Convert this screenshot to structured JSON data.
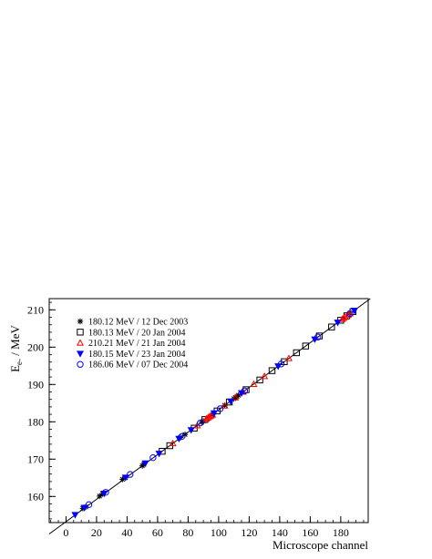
{
  "chart_data": {
    "type": "scatter",
    "xlabel": "Microscope channel",
    "ylabel": "E",
    "ylabel_subscript": "e-",
    "ylabel_unit": " / MeV",
    "xlim": [
      -11,
      198
    ],
    "ylim": [
      153,
      213
    ],
    "x_ticks": [
      0,
      20,
      40,
      60,
      80,
      100,
      120,
      140,
      160,
      180
    ],
    "y_ticks": [
      160,
      170,
      180,
      190,
      200,
      210
    ],
    "x_minor_step": 5,
    "y_minor_step": 2,
    "grid": false,
    "legend_position": "top-left",
    "fit_line": {
      "slope": 0.2997,
      "intercept": 153.24,
      "color": "#000000"
    },
    "series": [
      {
        "name": "180.12 MeV / 12 Dec 2003",
        "marker": "star",
        "color": "#000000",
        "points": [
          [
            11,
            156.8
          ],
          [
            13,
            157.2
          ],
          [
            22,
            160.1
          ],
          [
            24,
            160.7
          ],
          [
            37,
            164.6
          ],
          [
            39,
            165.0
          ],
          [
            50,
            168.2
          ],
          [
            51,
            168.6
          ],
          [
            75,
            175.8
          ],
          [
            78,
            176.6
          ],
          [
            89,
            179.9
          ],
          [
            90,
            180.2
          ],
          [
            96,
            181.9
          ],
          [
            104,
            184.4
          ],
          [
            110,
            186.2
          ],
          [
            111,
            186.5
          ],
          [
            112,
            186.8
          ],
          [
            113,
            187.1
          ]
        ]
      },
      {
        "name": "180.13 MeV / 20 Jan 2004",
        "marker": "square",
        "color": "#000000",
        "points": [
          [
            63,
            172.1
          ],
          [
            68,
            173.6
          ],
          [
            84,
            178.3
          ],
          [
            91,
            180.6
          ],
          [
            99,
            182.9
          ],
          [
            107,
            185.3
          ],
          [
            118,
            188.6
          ],
          [
            127,
            191.2
          ],
          [
            135,
            193.7
          ],
          [
            143,
            196.1
          ],
          [
            151,
            198.5
          ],
          [
            157,
            200.3
          ],
          [
            166,
            203.0
          ],
          [
            174,
            205.4
          ],
          [
            180,
            207.2
          ],
          [
            184,
            208.4
          ],
          [
            188,
            209.5
          ]
        ]
      },
      {
        "name": "210.21 MeV / 21 Jan 2004",
        "marker": "triangle-up",
        "color": "#ff0000",
        "points": [
          [
            70,
            174.2
          ],
          [
            86,
            179.0
          ],
          [
            92,
            180.8
          ],
          [
            93,
            181.1
          ],
          [
            94,
            181.4
          ],
          [
            95,
            181.6
          ],
          [
            96,
            181.9
          ],
          [
            104,
            184.3
          ],
          [
            111,
            186.5
          ],
          [
            116,
            188.0
          ],
          [
            123,
            190.1
          ],
          [
            130,
            192.2
          ],
          [
            146,
            197.0
          ],
          [
            181,
            207.5
          ],
          [
            182,
            207.8
          ],
          [
            183,
            208.1
          ],
          [
            185,
            208.7
          ],
          [
            186,
            209.0
          ]
        ]
      },
      {
        "name": "180.15 MeV / 23 Jan 2004",
        "marker": "triangle-down",
        "color": "#0000ff",
        "points": [
          [
            6,
            155.1
          ],
          [
            12,
            157.0
          ],
          [
            25,
            160.8
          ],
          [
            39,
            165.1
          ],
          [
            52,
            168.9
          ],
          [
            61,
            171.5
          ],
          [
            74,
            175.5
          ],
          [
            82,
            177.8
          ],
          [
            97,
            182.3
          ],
          [
            108,
            185.5
          ],
          [
            115,
            187.7
          ],
          [
            139,
            194.9
          ],
          [
            163,
            202.1
          ],
          [
            178,
            206.6
          ],
          [
            189,
            209.8
          ]
        ]
      },
      {
        "name": "186.06 MeV / 07 Dec 2004",
        "marker": "circle",
        "color": "#0000ff",
        "points": [
          [
            15,
            157.8
          ],
          [
            26,
            161.1
          ],
          [
            42,
            165.9
          ],
          [
            57,
            170.4
          ],
          [
            76,
            176.1
          ],
          [
            88,
            179.7
          ],
          [
            101,
            183.5
          ],
          [
            117,
            188.3
          ],
          [
            141,
            195.5
          ],
          [
            165,
            202.7
          ],
          [
            186,
            209.0
          ]
        ]
      }
    ]
  }
}
